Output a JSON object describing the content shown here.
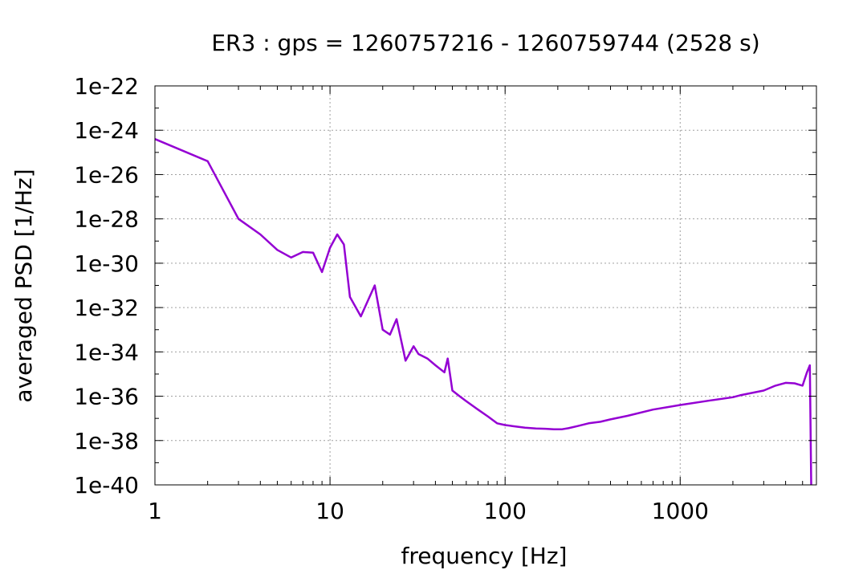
{
  "chart_data": {
    "type": "line",
    "title": "ER3 : gps = 1260757216 - 1260759744 (2528 s)",
    "xlabel": "frequency [Hz]",
    "ylabel": "averaged PSD [1/Hz]",
    "xscale": "log",
    "yscale": "log",
    "xlim": [
      1,
      6000
    ],
    "ylim": [
      1e-40,
      1e-22
    ],
    "grid": true,
    "x_ticks": [
      {
        "value": 1,
        "label": "1"
      },
      {
        "value": 10,
        "label": "10"
      },
      {
        "value": 100,
        "label": "100"
      },
      {
        "value": 1000,
        "label": "1000"
      }
    ],
    "y_ticks": [
      {
        "value": 1e-40,
        "label": "1e-40"
      },
      {
        "value": 1e-38,
        "label": "1e-38"
      },
      {
        "value": 1e-36,
        "label": "1e-36"
      },
      {
        "value": 1e-34,
        "label": "1e-34"
      },
      {
        "value": 1e-32,
        "label": "1e-32"
      },
      {
        "value": 1e-30,
        "label": "1e-30"
      },
      {
        "value": 1e-28,
        "label": "1e-28"
      },
      {
        "value": 1e-26,
        "label": "1e-26"
      },
      {
        "value": 1e-24,
        "label": "1e-24"
      },
      {
        "value": 1e-22,
        "label": "1e-22"
      }
    ],
    "series": [
      {
        "color": "#9400d3",
        "x": [
          1,
          2,
          3,
          4,
          5,
          6,
          7,
          8,
          9,
          10,
          11,
          12,
          13,
          15,
          18,
          20,
          22,
          24,
          27,
          30,
          32,
          36,
          40,
          45,
          47,
          50,
          55,
          60,
          70,
          80,
          90,
          100,
          110,
          130,
          150,
          170,
          190,
          210,
          230,
          260,
          300,
          350,
          400,
          500,
          700,
          1000,
          1500,
          2000,
          2200,
          3000,
          3500,
          4000,
          4500,
          5000,
          5300,
          5500,
          5600
        ],
        "y": [
          4e-25,
          4e-26,
          1e-28,
          2e-29,
          4e-30,
          1.8e-30,
          3.2e-30,
          3e-30,
          4e-31,
          5e-30,
          2e-29,
          7e-30,
          3e-32,
          4e-33,
          1e-31,
          1e-33,
          6e-34,
          3e-33,
          4e-35,
          1.8e-34,
          8e-35,
          5e-35,
          2.5e-35,
          1.2e-35,
          5e-35,
          1.8e-36,
          1e-36,
          6e-37,
          2.5e-37,
          1.2e-37,
          6e-38,
          5e-38,
          4.5e-38,
          3.8e-38,
          3.5e-38,
          3.4e-38,
          3.2e-38,
          3.2e-38,
          3.6e-38,
          4.5e-38,
          6e-38,
          7e-38,
          9e-38,
          1.3e-37,
          2.5e-37,
          4e-37,
          6.5e-37,
          9e-37,
          1.1e-36,
          1.8e-36,
          3e-36,
          4e-36,
          3.8e-36,
          3e-36,
          1.2e-35,
          2.5e-35,
          1e-40
        ]
      }
    ]
  }
}
